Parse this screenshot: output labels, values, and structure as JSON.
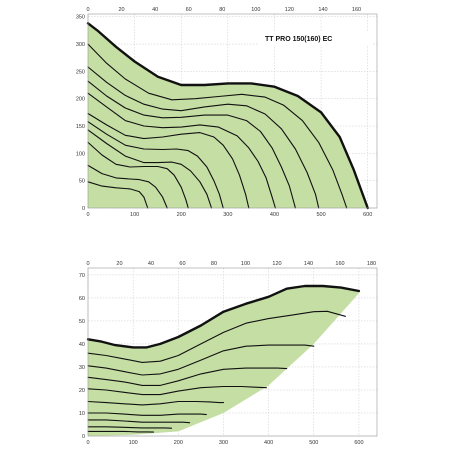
{
  "chart_data": [
    {
      "type": "line",
      "title": "TT PRO 150(160) EC",
      "x_bottom": {
        "ticks": [
          0,
          100,
          200,
          300,
          400,
          500,
          600
        ],
        "lim": [
          0,
          620
        ]
      },
      "x_top": {
        "ticks": [
          0,
          20,
          40,
          60,
          80,
          100,
          120,
          140,
          160
        ],
        "lim": [
          0,
          172.2
        ]
      },
      "y": {
        "ticks": [
          0,
          50,
          100,
          150,
          200,
          250,
          300,
          350
        ],
        "lim": [
          0,
          355
        ]
      },
      "grid": true,
      "fill_color": "#c4dea4",
      "curve_color": "#111111",
      "envelope": [
        [
          0,
          338
        ],
        [
          20,
          325
        ],
        [
          60,
          295
        ],
        [
          100,
          268
        ],
        [
          150,
          240
        ],
        [
          200,
          225
        ],
        [
          250,
          225
        ],
        [
          300,
          228
        ],
        [
          350,
          228
        ],
        [
          400,
          222
        ],
        [
          450,
          205
        ],
        [
          500,
          175
        ],
        [
          540,
          130
        ],
        [
          570,
          70
        ],
        [
          600,
          0
        ]
      ],
      "series": [
        {
          "points": [
            [
              0,
              300
            ],
            [
              40,
              265
            ],
            [
              80,
              236
            ],
            [
              130,
              210
            ],
            [
              180,
              198
            ],
            [
              230,
              200
            ],
            [
              280,
              204
            ],
            [
              330,
              208
            ],
            [
              380,
              203
            ],
            [
              420,
              188
            ],
            [
              460,
              160
            ],
            [
              495,
              120
            ],
            [
              525,
              70
            ],
            [
              545,
              25
            ],
            [
              555,
              0
            ]
          ]
        },
        {
          "points": [
            [
              0,
              258
            ],
            [
              40,
              230
            ],
            [
              80,
              206
            ],
            [
              120,
              190
            ],
            [
              160,
              181
            ],
            [
              200,
              178
            ],
            [
              250,
              185
            ],
            [
              300,
              190
            ],
            [
              340,
              187
            ],
            [
              380,
              172
            ],
            [
              415,
              145
            ],
            [
              445,
              108
            ],
            [
              470,
              65
            ],
            [
              488,
              25
            ],
            [
              495,
              0
            ]
          ]
        },
        {
          "points": [
            [
              0,
              232
            ],
            [
              40,
              205
            ],
            [
              80,
              183
            ],
            [
              120,
              170
            ],
            [
              160,
              165
            ],
            [
              200,
              166
            ],
            [
              250,
              170
            ],
            [
              300,
              170
            ],
            [
              340,
              160
            ],
            [
              370,
              140
            ],
            [
              395,
              110
            ],
            [
              415,
              75
            ],
            [
              432,
              40
            ],
            [
              445,
              0
            ]
          ]
        },
        {
          "points": [
            [
              0,
              210
            ],
            [
              40,
              185
            ],
            [
              80,
              160
            ],
            [
              120,
              150
            ],
            [
              160,
              147
            ],
            [
              200,
              148
            ],
            [
              240,
              152
            ],
            [
              280,
              148
            ],
            [
              320,
              132
            ],
            [
              345,
              110
            ],
            [
              365,
              85
            ],
            [
              382,
              55
            ],
            [
              395,
              20
            ],
            [
              402,
              0
            ]
          ]
        },
        {
          "points": [
            [
              0,
              173
            ],
            [
              40,
              152
            ],
            [
              80,
              133
            ],
            [
              120,
              127
            ],
            [
              160,
              130
            ],
            [
              200,
              135
            ],
            [
              240,
              138
            ],
            [
              270,
              130
            ],
            [
              290,
              115
            ],
            [
              310,
              90
            ],
            [
              325,
              60
            ],
            [
              338,
              25
            ],
            [
              345,
              0
            ]
          ]
        },
        {
          "points": [
            [
              0,
              158
            ],
            [
              40,
              135
            ],
            [
              80,
              115
            ],
            [
              120,
              108
            ],
            [
              160,
              107
            ],
            [
              190,
              108
            ],
            [
              215,
              105
            ],
            [
              235,
              95
            ],
            [
              255,
              75
            ],
            [
              270,
              50
            ],
            [
              282,
              25
            ],
            [
              290,
              0
            ]
          ]
        },
        {
          "points": [
            [
              0,
              143
            ],
            [
              40,
              118
            ],
            [
              80,
              95
            ],
            [
              120,
              83
            ],
            [
              150,
              83
            ],
            [
              180,
              84
            ],
            [
              200,
              80
            ],
            [
              220,
              68
            ],
            [
              240,
              48
            ],
            [
              255,
              25
            ],
            [
              265,
              0
            ]
          ]
        },
        {
          "points": [
            [
              0,
              120
            ],
            [
              30,
              97
            ],
            [
              60,
              80
            ],
            [
              90,
              75
            ],
            [
              120,
              76
            ],
            [
              150,
              76
            ],
            [
              170,
              72
            ],
            [
              185,
              60
            ],
            [
              200,
              38
            ],
            [
              210,
              15
            ],
            [
              215,
              0
            ]
          ]
        },
        {
          "points": [
            [
              0,
              78
            ],
            [
              30,
              63
            ],
            [
              60,
              55
            ],
            [
              90,
              53
            ],
            [
              110,
              52
            ],
            [
              130,
              48
            ],
            [
              145,
              38
            ],
            [
              160,
              20
            ],
            [
              170,
              0
            ]
          ]
        },
        {
          "points": [
            [
              0,
              48
            ],
            [
              30,
              40
            ],
            [
              60,
              37
            ],
            [
              90,
              35
            ],
            [
              110,
              30
            ],
            [
              120,
              20
            ],
            [
              128,
              0
            ]
          ]
        }
      ]
    },
    {
      "type": "line",
      "x_bottom": {
        "ticks": [
          0,
          100,
          200,
          300,
          400,
          500,
          600
        ],
        "lim": [
          0,
          640
        ]
      },
      "x_top": {
        "ticks": [
          0,
          20,
          40,
          60,
          80,
          100,
          120,
          140,
          160,
          180
        ],
        "lim": [
          0,
          183.5
        ]
      },
      "y": {
        "ticks": [
          0,
          10,
          20,
          30,
          40,
          50,
          60,
          70
        ],
        "lim": [
          0,
          73
        ]
      },
      "grid": true,
      "fill_color": "#c4dea4",
      "curve_color": "#111111",
      "area_lower": [
        [
          0,
          0
        ],
        [
          100,
          0.5
        ],
        [
          200,
          2
        ],
        [
          300,
          10
        ],
        [
          400,
          22
        ],
        [
          500,
          40
        ],
        [
          600,
          62
        ]
      ],
      "envelope": [
        [
          0,
          42
        ],
        [
          30,
          41
        ],
        [
          60,
          39.5
        ],
        [
          100,
          38.5
        ],
        [
          130,
          38.5
        ],
        [
          160,
          40
        ],
        [
          200,
          43
        ],
        [
          250,
          48
        ],
        [
          300,
          54
        ],
        [
          350,
          57.5
        ],
        [
          400,
          60.5
        ],
        [
          440,
          64
        ],
        [
          480,
          65.2
        ],
        [
          520,
          65.2
        ],
        [
          560,
          64.5
        ],
        [
          600,
          63
        ]
      ],
      "series": [
        {
          "points": [
            [
              0,
              36
            ],
            [
              40,
              35
            ],
            [
              80,
              33.5
            ],
            [
              120,
              32
            ],
            [
              160,
              32.5
            ],
            [
              200,
              35
            ],
            [
              250,
              40
            ],
            [
              300,
              45
            ],
            [
              350,
              49
            ],
            [
              400,
              51
            ],
            [
              450,
              52.5
            ],
            [
              500,
              54
            ],
            [
              530,
              54.2
            ],
            [
              570,
              52
            ]
          ]
        },
        {
          "points": [
            [
              0,
              30.5
            ],
            [
              40,
              29.5
            ],
            [
              80,
              28
            ],
            [
              120,
              26.5
            ],
            [
              160,
              27
            ],
            [
              200,
              29
            ],
            [
              250,
              33
            ],
            [
              300,
              37
            ],
            [
              350,
              39
            ],
            [
              400,
              39.5
            ],
            [
              450,
              39.5
            ],
            [
              480,
              39.5
            ],
            [
              500,
              39
            ]
          ]
        },
        {
          "points": [
            [
              0,
              25.5
            ],
            [
              40,
              24.5
            ],
            [
              80,
              23.5
            ],
            [
              120,
              22
            ],
            [
              160,
              22
            ],
            [
              200,
              24
            ],
            [
              250,
              27
            ],
            [
              300,
              29
            ],
            [
              350,
              29.5
            ],
            [
              390,
              29.5
            ],
            [
              420,
              29.5
            ],
            [
              440,
              29.3
            ]
          ]
        },
        {
          "points": [
            [
              0,
              20.5
            ],
            [
              40,
              20
            ],
            [
              80,
              19
            ],
            [
              120,
              18
            ],
            [
              160,
              18
            ],
            [
              200,
              19.5
            ],
            [
              250,
              21
            ],
            [
              300,
              21.5
            ],
            [
              340,
              21.5
            ],
            [
              370,
              21.2
            ],
            [
              395,
              21
            ]
          ]
        },
        {
          "points": [
            [
              0,
              15
            ],
            [
              40,
              14.5
            ],
            [
              80,
              14
            ],
            [
              120,
              13.5
            ],
            [
              160,
              14
            ],
            [
              200,
              15
            ],
            [
              240,
              15
            ],
            [
              270,
              14.8
            ],
            [
              290,
              14.5
            ],
            [
              300,
              14.5
            ]
          ]
        },
        {
          "points": [
            [
              0,
              10
            ],
            [
              40,
              10
            ],
            [
              80,
              9.5
            ],
            [
              120,
              9
            ],
            [
              160,
              9
            ],
            [
              200,
              9.5
            ],
            [
              230,
              9.5
            ],
            [
              250,
              9.5
            ],
            [
              262,
              9.3
            ]
          ]
        },
        {
          "points": [
            [
              0,
              7
            ],
            [
              40,
              7
            ],
            [
              80,
              6.5
            ],
            [
              120,
              6
            ],
            [
              160,
              6
            ],
            [
              190,
              6
            ],
            [
              210,
              6
            ],
            [
              225,
              5.8
            ]
          ]
        },
        {
          "points": [
            [
              0,
              4
            ],
            [
              40,
              4
            ],
            [
              80,
              3.8
            ],
            [
              120,
              3.5
            ],
            [
              150,
              3.5
            ],
            [
              170,
              3.5
            ],
            [
              185,
              3.4
            ]
          ]
        },
        {
          "points": [
            [
              0,
              2
            ],
            [
              40,
              2
            ],
            [
              80,
              2
            ],
            [
              110,
              1.8
            ],
            [
              130,
              1.8
            ],
            [
              145,
              1.7
            ]
          ]
        }
      ]
    }
  ]
}
